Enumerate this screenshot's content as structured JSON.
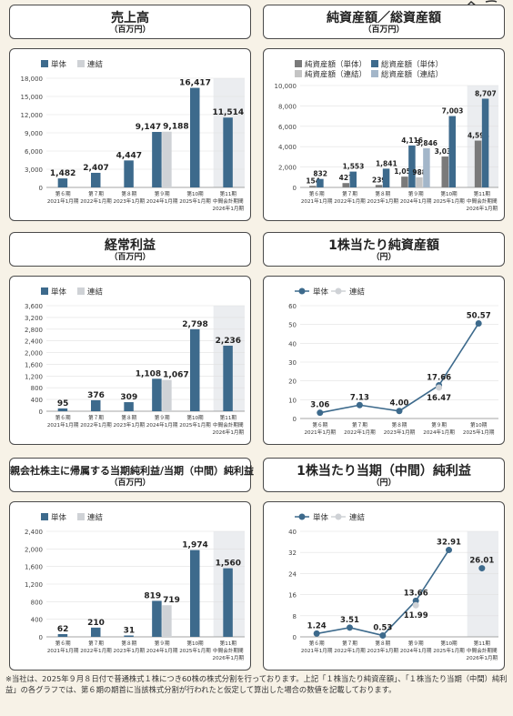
{
  "titles": {
    "sales": {
      "title": "売上高",
      "unit": "（百万円）"
    },
    "assets": {
      "title": "純資産額／総資産額",
      "unit": "（百万円）"
    },
    "ordinary": {
      "title": "経常利益",
      "unit": "（百万円）"
    },
    "bps": {
      "title": "1株当たり純資産額",
      "unit": "（円）"
    },
    "netincome": {
      "title": "親会社株主に帰属する当期純利益/当期（中間）純利益",
      "unit": "（百万円）"
    },
    "eps": {
      "title": "1株当たり当期（中間）純利益",
      "unit": "（円）"
    }
  },
  "footnote": "※当社は、2025年９月８日付で普通株式１株につき60株の株式分割を行っております。上記「１株当たり純資産額」、「１株当たり当期（中間）純利益」の各グラフでは、第６期の期首に当該株式分割が行われたと仮定して算出した場合の数値を記載しております。",
  "colors": {
    "single": "#3d6a8c",
    "consolidated": "#cfd2d6",
    "highlight": "#ebedf0",
    "assets_gray_single": "#7a7a7a",
    "assets_gray_cons": "#c4c4c4",
    "assets_blue_cons": "#a3b6c9"
  },
  "chart_data": [
    {
      "id": "sales",
      "type": "bar",
      "legend": [
        "単体",
        "連結"
      ],
      "categories": [
        [
          "第６期",
          "2021年1月期"
        ],
        [
          "第７期",
          "2022年1月期"
        ],
        [
          "第８期",
          "2023年1月期"
        ],
        [
          "第９期",
          "2024年1月期"
        ],
        [
          "第10期",
          "2025年1月期"
        ],
        [
          "第11期",
          "中間会計期間",
          "2026年1月期"
        ]
      ],
      "ylim": [
        0,
        18000
      ],
      "yticks": [
        "0",
        "3,000",
        "6,000",
        "9,000",
        "12,000",
        "15,000",
        "18,000"
      ],
      "highlight_last": true,
      "series": [
        {
          "name": "単体",
          "values": [
            1482,
            2407,
            4447,
            9147,
            16417,
            11514
          ],
          "labels": [
            "1,482",
            "2,407",
            "4,447",
            "9,147",
            "16,417",
            "11,514"
          ]
        },
        {
          "name": "連結",
          "values": [
            null,
            null,
            null,
            9188,
            null,
            null
          ],
          "labels": [
            null,
            null,
            null,
            "9,188",
            null,
            null
          ]
        }
      ]
    },
    {
      "id": "assets",
      "type": "bar",
      "legend": [
        "純資産額（単体）",
        "総資産額（単体）",
        "純資産額（連結）",
        "総資産額（連結）"
      ],
      "categories": [
        [
          "第６期",
          "2021年1月期"
        ],
        [
          "第７期",
          "2022年1月期"
        ],
        [
          "第８期",
          "2023年1月期"
        ],
        [
          "第９期",
          "2024年1月期"
        ],
        [
          "第10期",
          "2025年1月期"
        ],
        [
          "第11期",
          "中間会計期間",
          "2026年1月期"
        ]
      ],
      "ylim": [
        0,
        10000
      ],
      "yticks": [
        "0",
        "2,000",
        "4,000",
        "6,000",
        "8,000",
        "10,000"
      ],
      "highlight_last": true,
      "series": [
        {
          "name": "純資産額（単体）",
          "values": [
            154,
            427,
            239,
            1059,
            3033,
            4594
          ],
          "labels": [
            "154",
            "427",
            "239",
            "1,059",
            "3,033",
            "4,594"
          ]
        },
        {
          "name": "総資産額（単体）",
          "values": [
            832,
            1553,
            1841,
            4116,
            7003,
            8707
          ],
          "labels": [
            "832",
            "1,553",
            "1,841",
            "4,116",
            "7,003",
            "8,707"
          ]
        },
        {
          "name": "純資産額（連結）",
          "values": [
            null,
            null,
            null,
            988,
            null,
            null
          ],
          "labels": [
            null,
            null,
            null,
            "988",
            null,
            null
          ]
        },
        {
          "name": "総資産額（連結）",
          "values": [
            null,
            null,
            null,
            3846,
            null,
            null
          ],
          "labels": [
            null,
            null,
            null,
            "3,846",
            null,
            null
          ]
        }
      ]
    },
    {
      "id": "ordinary",
      "type": "bar",
      "legend": [
        "単体",
        "連結"
      ],
      "categories": [
        [
          "第６期",
          "2021年1月期"
        ],
        [
          "第７期",
          "2022年1月期"
        ],
        [
          "第８期",
          "2023年1月期"
        ],
        [
          "第９期",
          "2024年1月期"
        ],
        [
          "第10期",
          "2025年1月期"
        ],
        [
          "第11期",
          "中間会計期間",
          "2026年1月期"
        ]
      ],
      "ylim": [
        0,
        3600
      ],
      "yticks": [
        "0",
        "400",
        "800",
        "1,200",
        "1,600",
        "2,000",
        "2,400",
        "2,800",
        "3,200",
        "3,600"
      ],
      "highlight_last": true,
      "series": [
        {
          "name": "単体",
          "values": [
            95,
            376,
            309,
            1108,
            2798,
            2236
          ],
          "labels": [
            "95",
            "376",
            "309",
            "1,108",
            "2,798",
            "2,236"
          ]
        },
        {
          "name": "連結",
          "values": [
            null,
            null,
            null,
            1067,
            null,
            null
          ],
          "labels": [
            null,
            null,
            null,
            "1,067",
            null,
            null
          ]
        }
      ]
    },
    {
      "id": "bps",
      "type": "line",
      "legend": [
        "単体",
        "連結"
      ],
      "categories": [
        [
          "第６期",
          "2021年1月期"
        ],
        [
          "第７期",
          "2022年1月期"
        ],
        [
          "第８期",
          "2023年1月期"
        ],
        [
          "第９期",
          "2024年1月期"
        ],
        [
          "第10期",
          "2025年1月期"
        ]
      ],
      "ylim": [
        0,
        60
      ],
      "yticks": [
        "0",
        "10",
        "20",
        "30",
        "40",
        "50",
        "60"
      ],
      "highlight_last": false,
      "series": [
        {
          "name": "単体",
          "values": [
            3.06,
            7.13,
            4.0,
            17.66,
            50.57
          ],
          "labels": [
            "3.06",
            "7.13",
            "4.00",
            "17.66",
            "50.57"
          ]
        },
        {
          "name": "連結",
          "values": [
            null,
            null,
            null,
            16.47,
            null
          ],
          "labels": [
            null,
            null,
            null,
            "16.47",
            null
          ]
        }
      ]
    },
    {
      "id": "netincome",
      "type": "bar",
      "legend": [
        "単体",
        "連結"
      ],
      "categories": [
        [
          "第６期",
          "2021年1月期"
        ],
        [
          "第７期",
          "2022年1月期"
        ],
        [
          "第８期",
          "2023年1月期"
        ],
        [
          "第９期",
          "2024年1月期"
        ],
        [
          "第10期",
          "2025年1月期"
        ],
        [
          "第11期",
          "中間会計期間",
          "2026年1月期"
        ]
      ],
      "ylim": [
        0,
        2400
      ],
      "yticks": [
        "0",
        "400",
        "800",
        "1,200",
        "1,600",
        "2,000",
        "2,400"
      ],
      "highlight_last": true,
      "series": [
        {
          "name": "単体",
          "values": [
            62,
            210,
            31,
            819,
            1974,
            1560
          ],
          "labels": [
            "62",
            "210",
            "31",
            "819",
            "1,974",
            "1,560"
          ]
        },
        {
          "name": "連結",
          "values": [
            null,
            null,
            null,
            719,
            null,
            null
          ],
          "labels": [
            null,
            null,
            null,
            "719",
            null,
            null
          ]
        }
      ]
    },
    {
      "id": "eps",
      "type": "line",
      "legend": [
        "単体",
        "連結"
      ],
      "categories": [
        [
          "第６期",
          "2021年1月期"
        ],
        [
          "第７期",
          "2022年1月期"
        ],
        [
          "第８期",
          "2023年1月期"
        ],
        [
          "第９期",
          "2024年1月期"
        ],
        [
          "第10期",
          "2025年1月期"
        ],
        [
          "第11期",
          "中間会計期間",
          "2026年1月期"
        ]
      ],
      "ylim": [
        0,
        40
      ],
      "yticks": [
        "0",
        "8",
        "16",
        "24",
        "32",
        "40"
      ],
      "highlight_last": true,
      "series": [
        {
          "name": "単体",
          "values": [
            1.24,
            3.51,
            0.53,
            13.66,
            32.91,
            null
          ],
          "labels": [
            "1.24",
            "3.51",
            "0.53",
            "13.66",
            "32.91",
            null
          ]
        },
        {
          "name": "連結",
          "values": [
            null,
            null,
            null,
            11.99,
            null,
            null
          ],
          "labels": [
            null,
            null,
            null,
            "11.99",
            null,
            null
          ]
        },
        {
          "name": "第11期中間",
          "values": [
            null,
            null,
            null,
            null,
            null,
            26.01
          ],
          "labels": [
            null,
            null,
            null,
            null,
            null,
            "26.01"
          ]
        }
      ]
    }
  ]
}
